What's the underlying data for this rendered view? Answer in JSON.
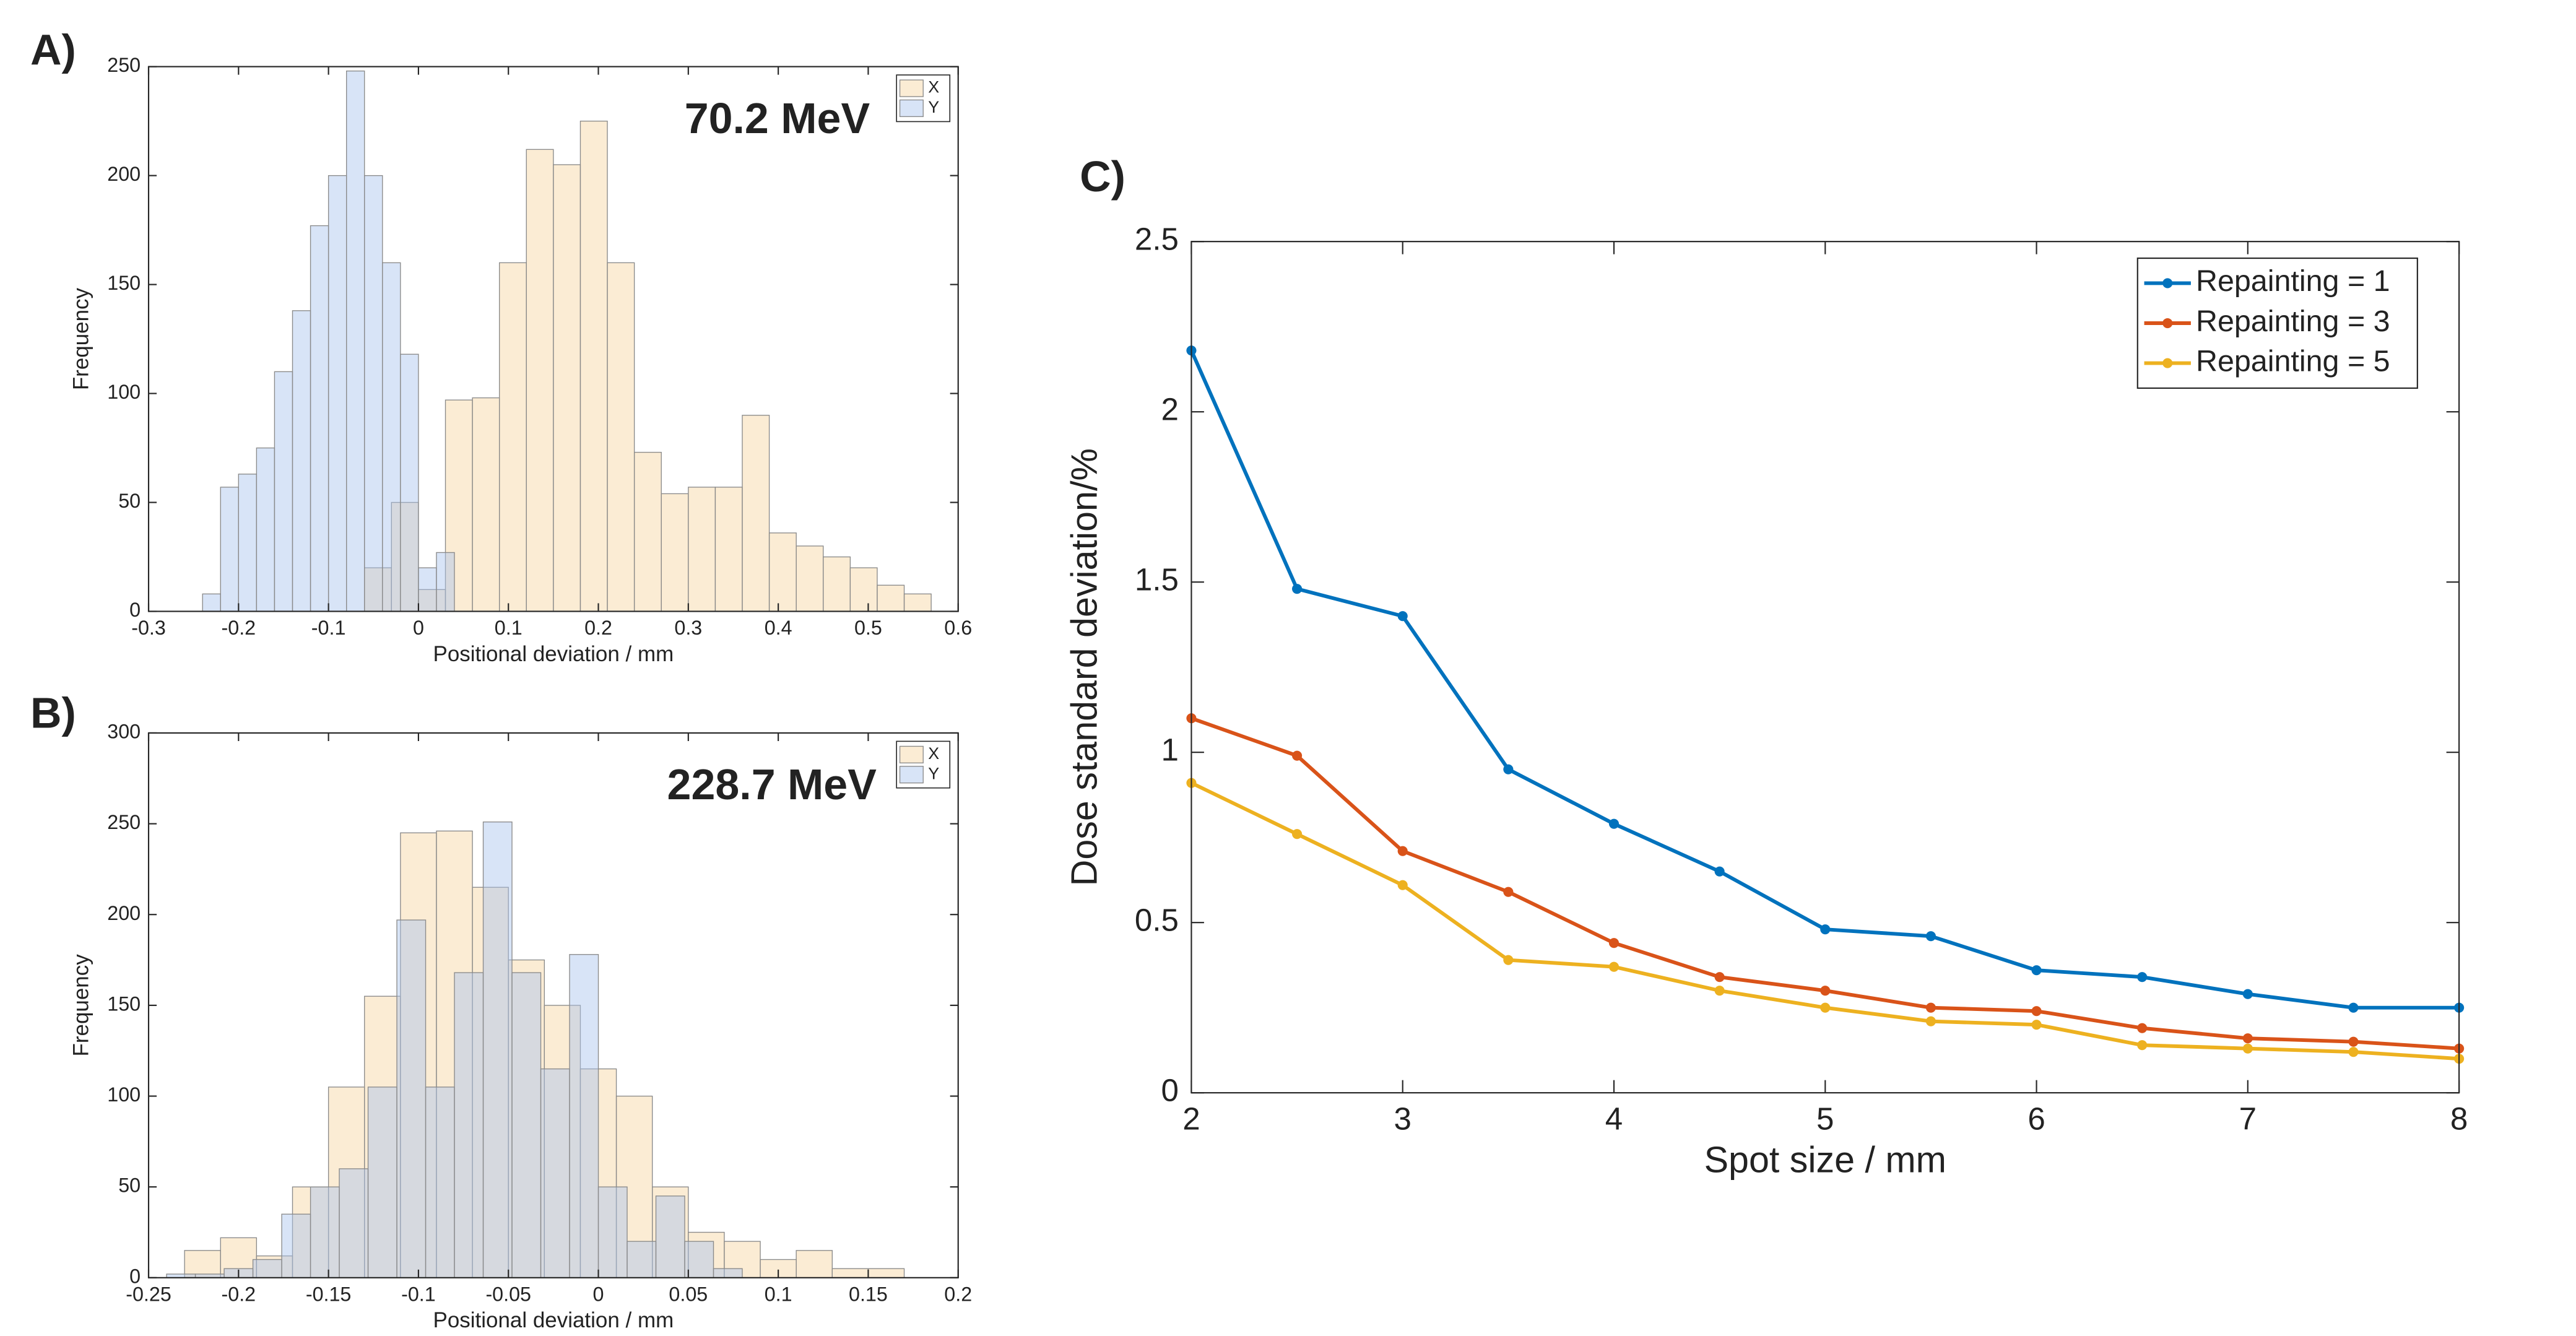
{
  "chart_data": [
    {
      "type": "histogram",
      "panel_label": "A)",
      "annotation": "70.2 MeV",
      "xlabel": "Positional deviation / mm",
      "ylabel": "Frequency",
      "xlim": [
        -0.3,
        0.6
      ],
      "xticks": [
        -0.3,
        -0.2,
        -0.1,
        0,
        0.1,
        0.2,
        0.3,
        0.4,
        0.5,
        0.6
      ],
      "ylim": [
        0,
        250
      ],
      "yticks": [
        0,
        50,
        100,
        150,
        200,
        250
      ],
      "legend": "top-right",
      "series": [
        {
          "name": "X",
          "color": "#f7d4a0",
          "bins": [
            -0.06,
            -0.03,
            0,
            0.03,
            0.06,
            0.09,
            0.12,
            0.15,
            0.18,
            0.21,
            0.24,
            0.27,
            0.3,
            0.33,
            0.36,
            0.39,
            0.42,
            0.45,
            0.48,
            0.51,
            0.54,
            0.57
          ],
          "values": [
            20,
            50,
            10,
            97,
            98,
            160,
            212,
            205,
            225,
            160,
            73,
            54,
            57,
            57,
            90,
            36,
            30,
            25,
            20,
            12,
            8
          ]
        },
        {
          "name": "Y",
          "color": "#a9c4ee",
          "bins": [
            -0.24,
            -0.22,
            -0.2,
            -0.18,
            -0.16,
            -0.14,
            -0.12,
            -0.1,
            -0.08,
            -0.06,
            -0.04,
            -0.02,
            0,
            0.02,
            0.04
          ],
          "values": [
            8,
            57,
            63,
            75,
            110,
            138,
            177,
            200,
            248,
            200,
            160,
            118,
            20,
            27
          ]
        }
      ]
    },
    {
      "type": "histogram",
      "panel_label": "B)",
      "annotation": "228.7 MeV",
      "xlabel": "Positional deviation / mm",
      "ylabel": "Frequency",
      "xlim": [
        -0.25,
        0.2
      ],
      "xticks": [
        -0.25,
        -0.2,
        -0.15,
        -0.1,
        -0.05,
        0,
        0.05,
        0.1,
        0.15,
        0.2
      ],
      "ylim": [
        0,
        300
      ],
      "yticks": [
        0,
        50,
        100,
        150,
        200,
        250,
        300
      ],
      "legend": "top-right",
      "series": [
        {
          "name": "X",
          "color": "#f7d4a0",
          "bins": [
            -0.23,
            -0.21,
            -0.19,
            -0.17,
            -0.15,
            -0.13,
            -0.11,
            -0.09,
            -0.07,
            -0.05,
            -0.03,
            -0.01,
            0.01,
            0.03,
            0.05,
            0.07,
            0.09,
            0.11,
            0.13,
            0.15,
            0.17
          ],
          "values": [
            15,
            22,
            12,
            50,
            105,
            155,
            245,
            246,
            215,
            175,
            150,
            115,
            100,
            50,
            25,
            20,
            10,
            15,
            5,
            5
          ]
        },
        {
          "name": "Y",
          "color": "#a9c4ee",
          "bins": [
            -0.24,
            -0.224,
            -0.208,
            -0.192,
            -0.176,
            -0.16,
            -0.144,
            -0.128,
            -0.112,
            -0.096,
            -0.08,
            -0.064,
            -0.048,
            -0.032,
            -0.016,
            0,
            0.016,
            0.032,
            0.048,
            0.064,
            0.08
          ],
          "values": [
            2,
            2,
            5,
            10,
            35,
            50,
            60,
            105,
            197,
            105,
            168,
            251,
            168,
            115,
            178,
            50,
            20,
            45,
            20,
            5
          ]
        }
      ]
    },
    {
      "type": "line",
      "panel_label": "C)",
      "xlabel": "Spot size / mm",
      "ylabel": "Dose standard deviation/%",
      "x": [
        2,
        2.5,
        3,
        3.5,
        4,
        4.5,
        5,
        5.5,
        6,
        6.5,
        7,
        7.5,
        8
      ],
      "xlim": [
        2,
        8
      ],
      "xticks": [
        2,
        3,
        4,
        5,
        6,
        7,
        8
      ],
      "ylim": [
        0,
        2.5
      ],
      "yticks": [
        0,
        0.5,
        1,
        1.5,
        2,
        2.5
      ],
      "legend": "top-right",
      "series": [
        {
          "name": "Repainting = 1",
          "color": "#0072bd",
          "values": [
            2.18,
            1.48,
            1.4,
            0.95,
            0.79,
            0.65,
            0.48,
            0.46,
            0.36,
            0.34,
            0.29,
            0.25,
            0.25
          ]
        },
        {
          "name": "Repainting = 3",
          "color": "#d95319",
          "values": [
            1.1,
            0.99,
            0.71,
            0.59,
            0.44,
            0.34,
            0.3,
            0.25,
            0.24,
            0.19,
            0.16,
            0.15,
            0.13
          ]
        },
        {
          "name": "Repainting = 5",
          "color": "#edb120",
          "values": [
            0.91,
            0.76,
            0.61,
            0.39,
            0.37,
            0.3,
            0.25,
            0.21,
            0.2,
            0.14,
            0.13,
            0.12,
            0.1
          ]
        }
      ]
    }
  ]
}
